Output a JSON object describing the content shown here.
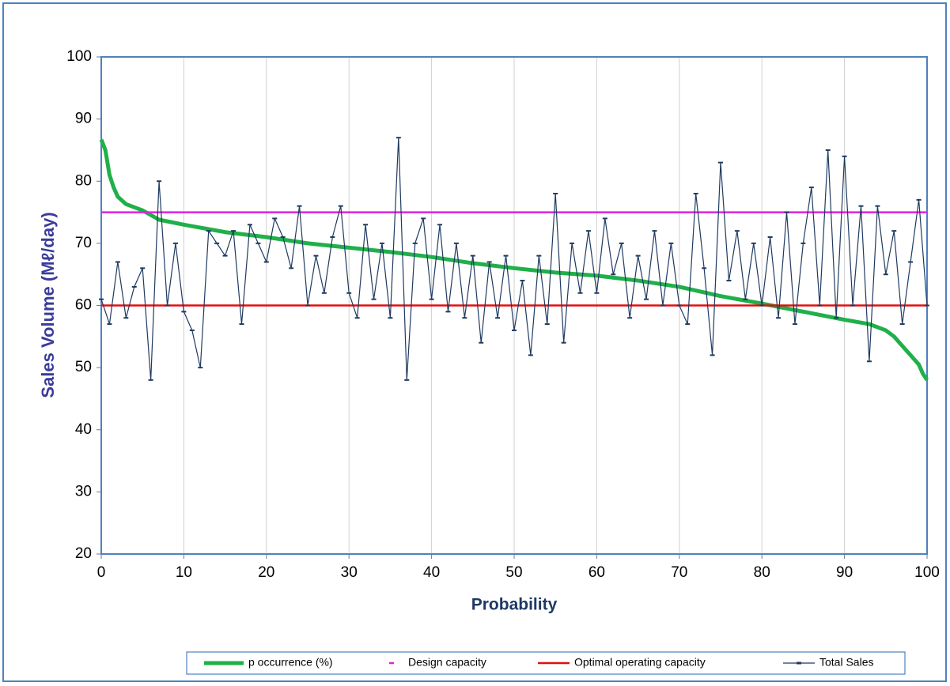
{
  "chart_data": {
    "type": "line",
    "ylabel": "Sales  Volume (Mℓ/day)",
    "xlabel": "Probability",
    "xlim": [
      0,
      100
    ],
    "ylim": [
      20,
      100
    ],
    "xticks": [
      0,
      10,
      20,
      30,
      40,
      50,
      60,
      70,
      80,
      90,
      100
    ],
    "yticks": [
      20,
      30,
      40,
      50,
      60,
      70,
      80,
      90,
      100
    ],
    "xgrid": true,
    "ygrid": false,
    "legend": "bottom",
    "series": [
      {
        "name": "p occurrence (%)",
        "color": "#1fb04a",
        "width": 5,
        "marker": false,
        "x": [
          0,
          0.5,
          1,
          1.5,
          2,
          3,
          5,
          7,
          10,
          15,
          20,
          25,
          30,
          35,
          40,
          45,
          50,
          55,
          60,
          65,
          70,
          75,
          80,
          85,
          90,
          93,
          95,
          96,
          97,
          98,
          99,
          99.5,
          100
        ],
        "values": [
          86.7,
          85,
          81,
          79,
          77.5,
          76.3,
          75.3,
          73.8,
          73,
          71.8,
          71,
          70,
          69.3,
          68.6,
          67.8,
          66.8,
          66,
          65.3,
          64.8,
          64,
          63,
          61.5,
          60.3,
          59,
          57.7,
          57,
          56,
          55,
          53.5,
          52,
          50.5,
          49,
          48
        ]
      },
      {
        "name": "Design capacity",
        "color": "#e020e0",
        "width": 2.5,
        "marker": false,
        "x": [
          0,
          100
        ],
        "values": [
          75,
          75
        ]
      },
      {
        "name": "Optimal operating capacity",
        "color": "#e01010",
        "width": 2.5,
        "marker": false,
        "x": [
          0,
          100
        ],
        "values": [
          60,
          60
        ]
      },
      {
        "name": "Total Sales",
        "color": "#1f3a60",
        "width": 1.2,
        "marker": true,
        "x": [
          0,
          1,
          2,
          3,
          4,
          5,
          6,
          7,
          8,
          9,
          10,
          11,
          12,
          13,
          14,
          15,
          16,
          17,
          18,
          19,
          20,
          21,
          22,
          23,
          24,
          25,
          26,
          27,
          28,
          29,
          30,
          31,
          32,
          33,
          34,
          35,
          36,
          37,
          38,
          39,
          40,
          41,
          42,
          43,
          44,
          45,
          46,
          47,
          48,
          49,
          50,
          51,
          52,
          53,
          54,
          55,
          56,
          57,
          58,
          59,
          60,
          61,
          62,
          63,
          64,
          65,
          66,
          67,
          68,
          69,
          70,
          71,
          72,
          73,
          74,
          75,
          76,
          77,
          78,
          79,
          80,
          81,
          82,
          83,
          84,
          85,
          86,
          87,
          88,
          89,
          90,
          91,
          92,
          93,
          94,
          95,
          96,
          97,
          98,
          99,
          100
        ],
        "values": [
          61,
          57,
          67,
          58,
          63,
          66,
          48,
          80,
          60,
          70,
          59,
          56,
          50,
          72,
          70,
          68,
          72,
          57,
          73,
          70,
          67,
          74,
          71,
          66,
          76,
          60,
          68,
          62,
          71,
          76,
          62,
          58,
          73,
          61,
          70,
          58,
          87,
          48,
          70,
          74,
          61,
          73,
          59,
          70,
          58,
          68,
          54,
          67,
          58,
          68,
          56,
          64,
          52,
          68,
          57,
          78,
          54,
          70,
          62,
          72,
          62,
          74,
          65,
          70,
          58,
          68,
          61,
          72,
          60,
          70,
          60,
          57,
          78,
          66,
          52,
          83,
          64,
          72,
          61,
          70,
          60,
          71,
          58,
          75,
          57,
          70,
          79,
          60,
          85,
          58,
          84,
          60,
          76,
          51,
          76,
          65,
          72,
          57,
          67,
          77,
          60
        ]
      }
    ]
  }
}
